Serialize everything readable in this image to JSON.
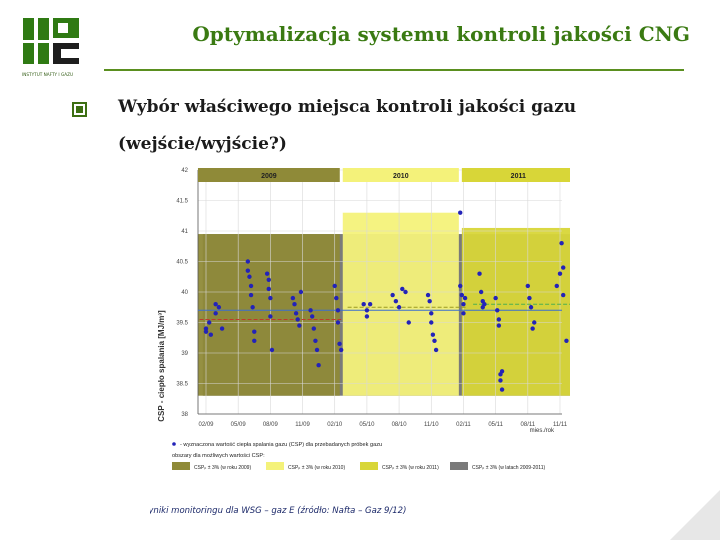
{
  "slide": {
    "title": "Optymalizacja systemu kontroli jakości CNG",
    "bullet_line1": "Wybór właściwego miejsca kontroli jakości gazu",
    "bullet_line2": "(wejście/wyjście?)",
    "logo_text": "INSTYTUT NAFTY I GAZU"
  },
  "chart_data": {
    "type": "scatter",
    "ylabel": "CSP - ciepło spalania [MJ/m³]",
    "xlabel": "mies./rok",
    "ylim": [
      38,
      42
    ],
    "yticks": [
      "42",
      "41.5",
      "41",
      "40.5",
      "40",
      "39.5",
      "39",
      "38.5",
      "38"
    ],
    "xticks": [
      "02/09",
      "05/09",
      "08/09",
      "11/09",
      "02/10",
      "05/10",
      "08/10",
      "11/10",
      "02/11",
      "05/11",
      "08/11",
      "11/11"
    ],
    "year_labels": [
      "2009",
      "2010",
      "2011"
    ],
    "reference_line": 39.7,
    "regions": [
      {
        "year": "2009",
        "from": 0,
        "to": 4.5,
        "top": 40.95,
        "color": "#8f8a38"
      },
      {
        "year": "2010",
        "from": 4.5,
        "to": 8.2,
        "top": 41.3,
        "color": "#f4f27a"
      },
      {
        "year": "2011",
        "from": 8.2,
        "to": 11.8,
        "top": 41.05,
        "color": "#d8d638"
      }
    ],
    "series": [
      {
        "color": "#2323b8",
        "points": [
          [
            0,
            39.4
          ],
          [
            0,
            39.35
          ],
          [
            0.1,
            39.5
          ],
          [
            0.15,
            39.3
          ],
          [
            0.3,
            39.65
          ],
          [
            0.4,
            39.75
          ],
          [
            0.5,
            39.4
          ],
          [
            0.3,
            39.8
          ],
          [
            1.3,
            40.5
          ],
          [
            1.3,
            40.35
          ],
          [
            1.35,
            40.25
          ],
          [
            1.4,
            40.1
          ],
          [
            1.4,
            39.95
          ],
          [
            1.45,
            39.75
          ],
          [
            1.5,
            39.35
          ],
          [
            1.5,
            39.2
          ],
          [
            1.9,
            40.3
          ],
          [
            1.95,
            40.2
          ],
          [
            1.95,
            40.05
          ],
          [
            2.0,
            39.9
          ],
          [
            2.0,
            39.6
          ],
          [
            2.05,
            39.05
          ],
          [
            2.7,
            39.9
          ],
          [
            2.75,
            39.8
          ],
          [
            2.8,
            39.65
          ],
          [
            2.85,
            39.55
          ],
          [
            2.9,
            39.45
          ],
          [
            2.95,
            40.0
          ],
          [
            3.25,
            39.7
          ],
          [
            3.3,
            39.6
          ],
          [
            3.35,
            39.4
          ],
          [
            3.4,
            39.2
          ],
          [
            3.45,
            39.05
          ],
          [
            3.5,
            38.8
          ],
          [
            4.0,
            40.1
          ],
          [
            4.05,
            39.9
          ],
          [
            4.1,
            39.7
          ],
          [
            4.1,
            39.5
          ],
          [
            4.15,
            39.15
          ],
          [
            4.2,
            39.05
          ],
          [
            4.9,
            39.8
          ],
          [
            5.0,
            39.7
          ],
          [
            5.0,
            39.6
          ],
          [
            5.1,
            39.8
          ],
          [
            5.8,
            39.95
          ],
          [
            5.9,
            39.85
          ],
          [
            6.0,
            39.75
          ],
          [
            6.1,
            40.05
          ],
          [
            6.2,
            40.0
          ],
          [
            6.3,
            39.5
          ],
          [
            6.9,
            39.95
          ],
          [
            6.95,
            39.85
          ],
          [
            7.0,
            39.65
          ],
          [
            7.0,
            39.5
          ],
          [
            7.05,
            39.3
          ],
          [
            7.1,
            39.2
          ],
          [
            7.15,
            39.05
          ],
          [
            7.9,
            41.3
          ],
          [
            7.9,
            40.1
          ],
          [
            7.95,
            39.95
          ],
          [
            8.0,
            39.8
          ],
          [
            8.0,
            39.65
          ],
          [
            8.05,
            39.9
          ],
          [
            8.5,
            40.3
          ],
          [
            8.55,
            40.0
          ],
          [
            8.6,
            39.85
          ],
          [
            8.6,
            39.75
          ],
          [
            8.65,
            39.8
          ],
          [
            9.0,
            39.9
          ],
          [
            9.05,
            39.7
          ],
          [
            9.1,
            39.55
          ],
          [
            9.1,
            39.45
          ],
          [
            9.15,
            38.65
          ],
          [
            9.15,
            38.55
          ],
          [
            9.2,
            38.4
          ],
          [
            9.2,
            38.7
          ],
          [
            10.0,
            40.1
          ],
          [
            10.05,
            39.9
          ],
          [
            10.1,
            39.75
          ],
          [
            10.15,
            39.4
          ],
          [
            10.2,
            39.5
          ],
          [
            10.9,
            40.1
          ],
          [
            11.0,
            40.3
          ],
          [
            11.05,
            40.8
          ],
          [
            11.1,
            40.4
          ],
          [
            11.1,
            39.95
          ],
          [
            11.2,
            39.2
          ],
          [
            11.7,
            40.05
          ],
          [
            11.75,
            39.6
          ],
          [
            11.8,
            40.15
          ]
        ]
      }
    ],
    "legend": {
      "series_text": "- wyznaczona wartość ciepła spalania gazu (CSP) dla przebadanych próbek gazu",
      "areas_title": "obszary dla możliwych wartości CSP:",
      "areas": [
        {
          "color": "#8f8a38",
          "text": "CSPₚ ± 3% (w roku 2009)"
        },
        {
          "color": "#f4f27a",
          "text": "CSPₚ ± 3% (w roku 2010)"
        },
        {
          "color": "#d8d638",
          "text": "CSPₚ ± 3% (w roku 2011)"
        },
        {
          "color": "#7a7a7a",
          "text": "CSPₚ ± 3% (w latach 2009-2011)"
        }
      ]
    },
    "caption": "Wyniki monitoringu dla WSG – gaz E (źródło: Nafta – Gaz 9/12)"
  }
}
